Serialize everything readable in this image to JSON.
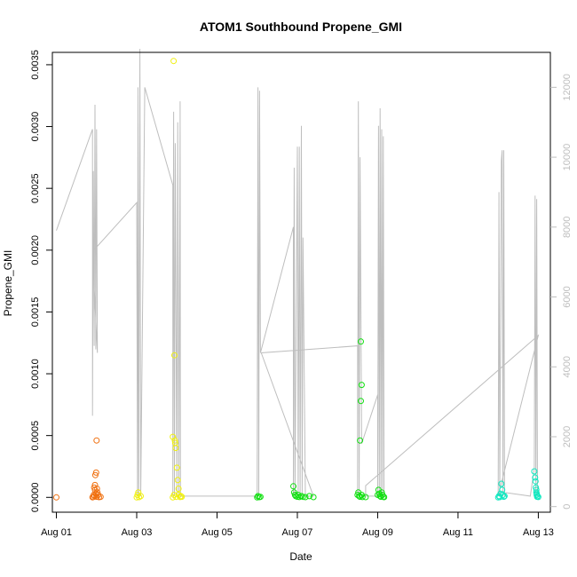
{
  "chart_data": {
    "type": "scatter",
    "title": "ATOM1 Southbound Propene_GMI",
    "xlabel": "Date",
    "ylabel": "Propene_GMI",
    "xlim": [
      -0.1,
      12.3
    ],
    "ylim": [
      -0.00012,
      0.0036
    ],
    "y2lim": [
      -160,
      13000
    ],
    "x_ticks": [
      {
        "v": 0,
        "label": "Aug 01"
      },
      {
        "v": 2,
        "label": "Aug 03"
      },
      {
        "v": 4,
        "label": "Aug 05"
      },
      {
        "v": 6,
        "label": "Aug 07"
      },
      {
        "v": 8,
        "label": "Aug 09"
      },
      {
        "v": 10,
        "label": "Aug 11"
      },
      {
        "v": 12,
        "label": "Aug 13"
      }
    ],
    "y_ticks": [
      {
        "v": 0,
        "label": "0.0000"
      },
      {
        "v": 0.0005,
        "label": "0.0005"
      },
      {
        "v": 0.001,
        "label": "0.0010"
      },
      {
        "v": 0.0015,
        "label": "0.0015"
      },
      {
        "v": 0.002,
        "label": "0.0020"
      },
      {
        "v": 0.0025,
        "label": "0.0025"
      },
      {
        "v": 0.003,
        "label": "0.0030"
      },
      {
        "v": 0.0035,
        "label": "0.0035"
      }
    ],
    "y2_ticks": [
      {
        "v": 0,
        "label": "0"
      },
      {
        "v": 2000,
        "label": "2000"
      },
      {
        "v": 4000,
        "label": "4000"
      },
      {
        "v": 6000,
        "label": "6000"
      },
      {
        "v": 8000,
        "label": "8000"
      },
      {
        "v": 10000,
        "label": "10000"
      },
      {
        "v": 12000,
        "label": "12000"
      }
    ],
    "grid": false,
    "legend": "none",
    "altitude_color": "#bebebe",
    "altitude_series": [
      [
        0.0,
        7900
      ],
      [
        0.9,
        10800
      ],
      [
        0.9,
        2600
      ],
      [
        0.92,
        9600
      ],
      [
        0.94,
        4600
      ],
      [
        0.96,
        11500
      ],
      [
        0.98,
        4500
      ],
      [
        1.0,
        10800
      ],
      [
        1.02,
        4400
      ],
      [
        0.9,
        7300
      ],
      [
        2.0,
        8700
      ],
      [
        2.02,
        300
      ],
      [
        2.03,
        12000
      ],
      [
        2.05,
        300
      ],
      [
        2.08,
        13100
      ],
      [
        2.1,
        300
      ],
      [
        2.12,
        2600
      ],
      [
        2.2,
        12000
      ],
      [
        2.9,
        9200
      ],
      [
        2.9,
        300
      ],
      [
        2.92,
        11300
      ],
      [
        2.94,
        300
      ],
      [
        2.96,
        10400
      ],
      [
        3.0,
        300
      ],
      [
        3.02,
        11000
      ],
      [
        3.05,
        300
      ],
      [
        3.08,
        11100
      ],
      [
        3.08,
        11600
      ],
      [
        3.09,
        300
      ],
      [
        5.0,
        300
      ],
      [
        5.02,
        12000
      ],
      [
        5.04,
        300
      ],
      [
        5.06,
        11900
      ],
      [
        5.08,
        4400
      ],
      [
        5.9,
        8000
      ],
      [
        5.9,
        300
      ],
      [
        5.92,
        9700
      ],
      [
        5.94,
        300
      ],
      [
        6.0,
        10300
      ],
      [
        6.02,
        300
      ],
      [
        6.05,
        10300
      ],
      [
        6.07,
        300
      ],
      [
        6.1,
        10900
      ],
      [
        6.12,
        300
      ],
      [
        6.14,
        7700
      ],
      [
        6.2,
        300
      ],
      [
        6.15,
        300
      ],
      [
        6.3,
        300
      ],
      [
        6.4,
        300
      ],
      [
        5.1,
        4400
      ],
      [
        7.5,
        4600
      ],
      [
        7.5,
        300
      ],
      [
        7.52,
        11600
      ],
      [
        7.54,
        300
      ],
      [
        7.56,
        10000
      ],
      [
        7.6,
        1800
      ],
      [
        8.0,
        3200
      ],
      [
        8.0,
        300
      ],
      [
        8.02,
        10900
      ],
      [
        8.04,
        300
      ],
      [
        8.06,
        11400
      ],
      [
        8.08,
        300
      ],
      [
        8.1,
        10800
      ],
      [
        8.12,
        300
      ],
      [
        8.14,
        10600
      ],
      [
        8.16,
        300
      ],
      [
        7.8,
        300
      ],
      [
        7.7,
        300
      ],
      [
        7.7,
        600
      ],
      [
        12.0,
        4900
      ],
      [
        11.0,
        300
      ],
      [
        11.02,
        9000
      ],
      [
        11.04,
        300
      ],
      [
        11.08,
        9900
      ],
      [
        11.1,
        10200
      ],
      [
        11.12,
        300
      ],
      [
        11.14,
        10200
      ],
      [
        11.16,
        300
      ],
      [
        11.2,
        400
      ],
      [
        11.8,
        300
      ],
      [
        11.9,
        1100
      ],
      [
        11.92,
        8900
      ],
      [
        11.94,
        300
      ],
      [
        11.96,
        8800
      ],
      [
        11.98,
        300
      ]
    ],
    "series": [
      {
        "color": "#f07010",
        "points": [
          [
            0.0,
            0.0
          ],
          [
            0.92,
            3e-06
          ],
          [
            0.93,
            2e-05
          ],
          [
            0.95,
            1e-05
          ],
          [
            0.96,
            6e-05
          ],
          [
            0.98,
            3e-05
          ],
          [
            1.0,
            5e-06
          ],
          [
            1.02,
            4e-05
          ],
          [
            1.04,
            2e-05
          ],
          [
            0.94,
            8e-05
          ],
          [
            0.96,
            0.0001
          ],
          [
            0.97,
            0.00018
          ],
          [
            0.99,
            0.0002
          ],
          [
            1.0,
            0.00046
          ],
          [
            0.98,
            3e-05
          ],
          [
            1.06,
            2e-06
          ],
          [
            1.1,
            4e-06
          ],
          [
            0.9,
            1e-06
          ],
          [
            1.01,
            7e-05
          ]
        ]
      },
      {
        "color": "#f0f010",
        "points": [
          [
            2.0,
            0.0
          ],
          [
            2.02,
            2e-05
          ],
          [
            2.04,
            4e-05
          ],
          [
            2.06,
            2e-06
          ],
          [
            2.1,
            1e-05
          ],
          [
            2.92,
            0.00353
          ],
          [
            2.9,
            0.0
          ],
          [
            2.94,
            0.00115
          ],
          [
            2.9,
            0.00049
          ],
          [
            2.95,
            0.00046
          ],
          [
            2.97,
            0.0004
          ],
          [
            2.96,
            0.00044
          ],
          [
            3.0,
            0.00024
          ],
          [
            3.02,
            0.00014
          ],
          [
            3.04,
            7e-05
          ],
          [
            3.05,
            2e-05
          ],
          [
            3.08,
            3e-06
          ],
          [
            3.1,
            1e-05
          ],
          [
            3.12,
            5e-06
          ],
          [
            2.93,
            2e-05
          ],
          [
            2.98,
            4e-06
          ]
        ]
      },
      {
        "color": "#10e010",
        "points": [
          [
            5.0,
            0.0
          ],
          [
            5.02,
            1e-05
          ],
          [
            5.05,
            2e-06
          ],
          [
            5.08,
            4e-06
          ],
          [
            5.9,
            9e-05
          ],
          [
            5.92,
            4e-05
          ],
          [
            5.94,
            2e-05
          ],
          [
            5.96,
            1e-05
          ],
          [
            6.0,
            5e-06
          ],
          [
            6.02,
            2e-05
          ],
          [
            6.05,
            3e-06
          ],
          [
            6.1,
            1e-05
          ],
          [
            6.14,
            4e-06
          ],
          [
            6.2,
            2e-06
          ],
          [
            6.3,
            1e-05
          ],
          [
            6.4,
            2e-06
          ],
          [
            7.5,
            2e-05
          ],
          [
            7.52,
            4e-05
          ],
          [
            7.54,
            1e-05
          ],
          [
            7.56,
            5e-06
          ],
          [
            7.58,
            0.00126
          ],
          [
            7.6,
            0.00091
          ],
          [
            7.58,
            0.00078
          ],
          [
            7.56,
            0.00046
          ],
          [
            7.6,
            2e-05
          ],
          [
            7.62,
            3e-06
          ],
          [
            7.7,
            2e-06
          ],
          [
            8.0,
            2e-05
          ],
          [
            8.02,
            6e-05
          ],
          [
            8.04,
            3e-05
          ],
          [
            8.06,
            1e-05
          ],
          [
            8.08,
            5e-06
          ],
          [
            8.1,
            4e-05
          ],
          [
            8.12,
            2e-05
          ],
          [
            8.14,
            4e-06
          ],
          [
            8.16,
            2e-06
          ]
        ]
      },
      {
        "color": "#10e8c0",
        "points": [
          [
            11.0,
            0.0
          ],
          [
            11.02,
            1e-05
          ],
          [
            11.04,
            2e-06
          ],
          [
            11.06,
            3e-05
          ],
          [
            11.08,
            0.00011
          ],
          [
            11.1,
            6e-05
          ],
          [
            11.12,
            2e-05
          ],
          [
            11.14,
            5e-06
          ],
          [
            11.16,
            1e-05
          ],
          [
            11.9,
            0.00021
          ],
          [
            11.92,
            0.00016
          ],
          [
            11.93,
            0.00013
          ],
          [
            11.94,
            8e-05
          ],
          [
            11.95,
            4e-05
          ],
          [
            11.96,
            2e-05
          ],
          [
            11.97,
            5e-06
          ],
          [
            11.98,
            1e-05
          ],
          [
            11.95,
            6e-05
          ],
          [
            11.96,
            3e-05
          ],
          [
            12.0,
            3e-06
          ]
        ]
      }
    ]
  }
}
